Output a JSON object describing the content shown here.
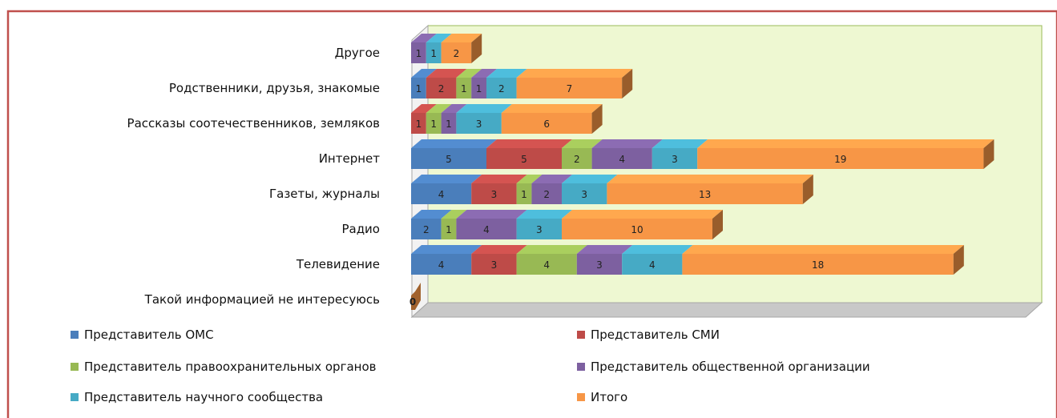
{
  "chart_data": {
    "type": "bar",
    "orientation": "horizontal",
    "stacked": true,
    "style": "3d",
    "title": "",
    "xlabel": "",
    "ylabel": "",
    "grid": false,
    "legend_position": "bottom",
    "categories": [
      "Другое",
      "Родственники, друзья, знакомые",
      "Рассказы соотечественников, земляков",
      "Интернет",
      "Газеты, журналы",
      "Радио",
      "Телевидение",
      "Такой информацией  не интересуюсь"
    ],
    "series": [
      {
        "name": "Представитель  ОМС",
        "color": "#4a7ebb",
        "values": [
          0,
          1,
          0,
          5,
          4,
          2,
          4,
          0
        ]
      },
      {
        "name": "Представитель СМИ",
        "color": "#be4b48",
        "values": [
          0,
          2,
          1,
          5,
          3,
          0,
          3,
          0
        ]
      },
      {
        "name": "Представитель правоохранительных органов",
        "color": "#98b954",
        "values": [
          0,
          1,
          1,
          2,
          1,
          1,
          4,
          0
        ]
      },
      {
        "name": "Представитель общественной организации",
        "color": "#7d60a0",
        "values": [
          1,
          1,
          1,
          4,
          2,
          4,
          3,
          0
        ]
      },
      {
        "name": "Представитель научного сообщества",
        "color": "#46aac5",
        "values": [
          1,
          2,
          3,
          3,
          3,
          3,
          4,
          0
        ]
      },
      {
        "name": "Итого",
        "color": "#f79646",
        "values": [
          2,
          7,
          6,
          19,
          13,
          10,
          18,
          0
        ]
      }
    ]
  }
}
